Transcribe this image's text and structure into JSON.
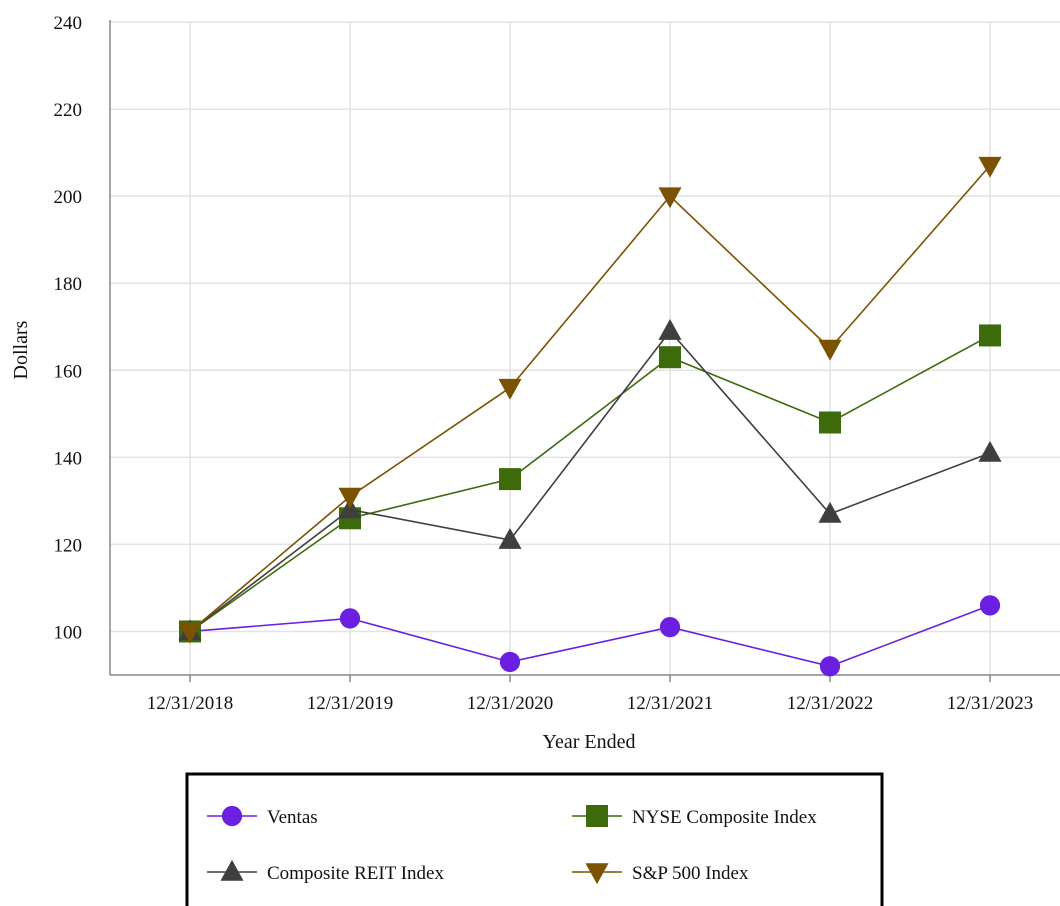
{
  "chart_data": {
    "type": "line",
    "title": "",
    "xlabel": "Year Ended",
    "ylabel": "Dollars",
    "categories": [
      "12/31/2018",
      "12/31/2019",
      "12/31/2020",
      "12/31/2021",
      "12/31/2022",
      "12/31/2023"
    ],
    "ylim": [
      90,
      240
    ],
    "yticks": [
      100,
      120,
      140,
      160,
      180,
      200,
      220,
      240
    ],
    "grid": true,
    "legend_position": "bottom",
    "series": [
      {
        "name": "Ventas",
        "values": [
          100,
          103,
          93,
          101,
          92,
          106
        ],
        "color": "#6b1fe0",
        "marker": "circle"
      },
      {
        "name": "NYSE Composite Index",
        "values": [
          100,
          126,
          135,
          163,
          148,
          168
        ],
        "color": "#3d6b0c",
        "marker": "square"
      },
      {
        "name": "Composite REIT Index",
        "values": [
          100,
          128,
          121,
          169,
          127,
          141
        ],
        "color": "#3f3f3f",
        "marker": "triangle-up"
      },
      {
        "name": "S&P 500 Index",
        "values": [
          100,
          131,
          156,
          200,
          165,
          207
        ],
        "color": "#7a5200",
        "marker": "triangle-down"
      }
    ]
  }
}
